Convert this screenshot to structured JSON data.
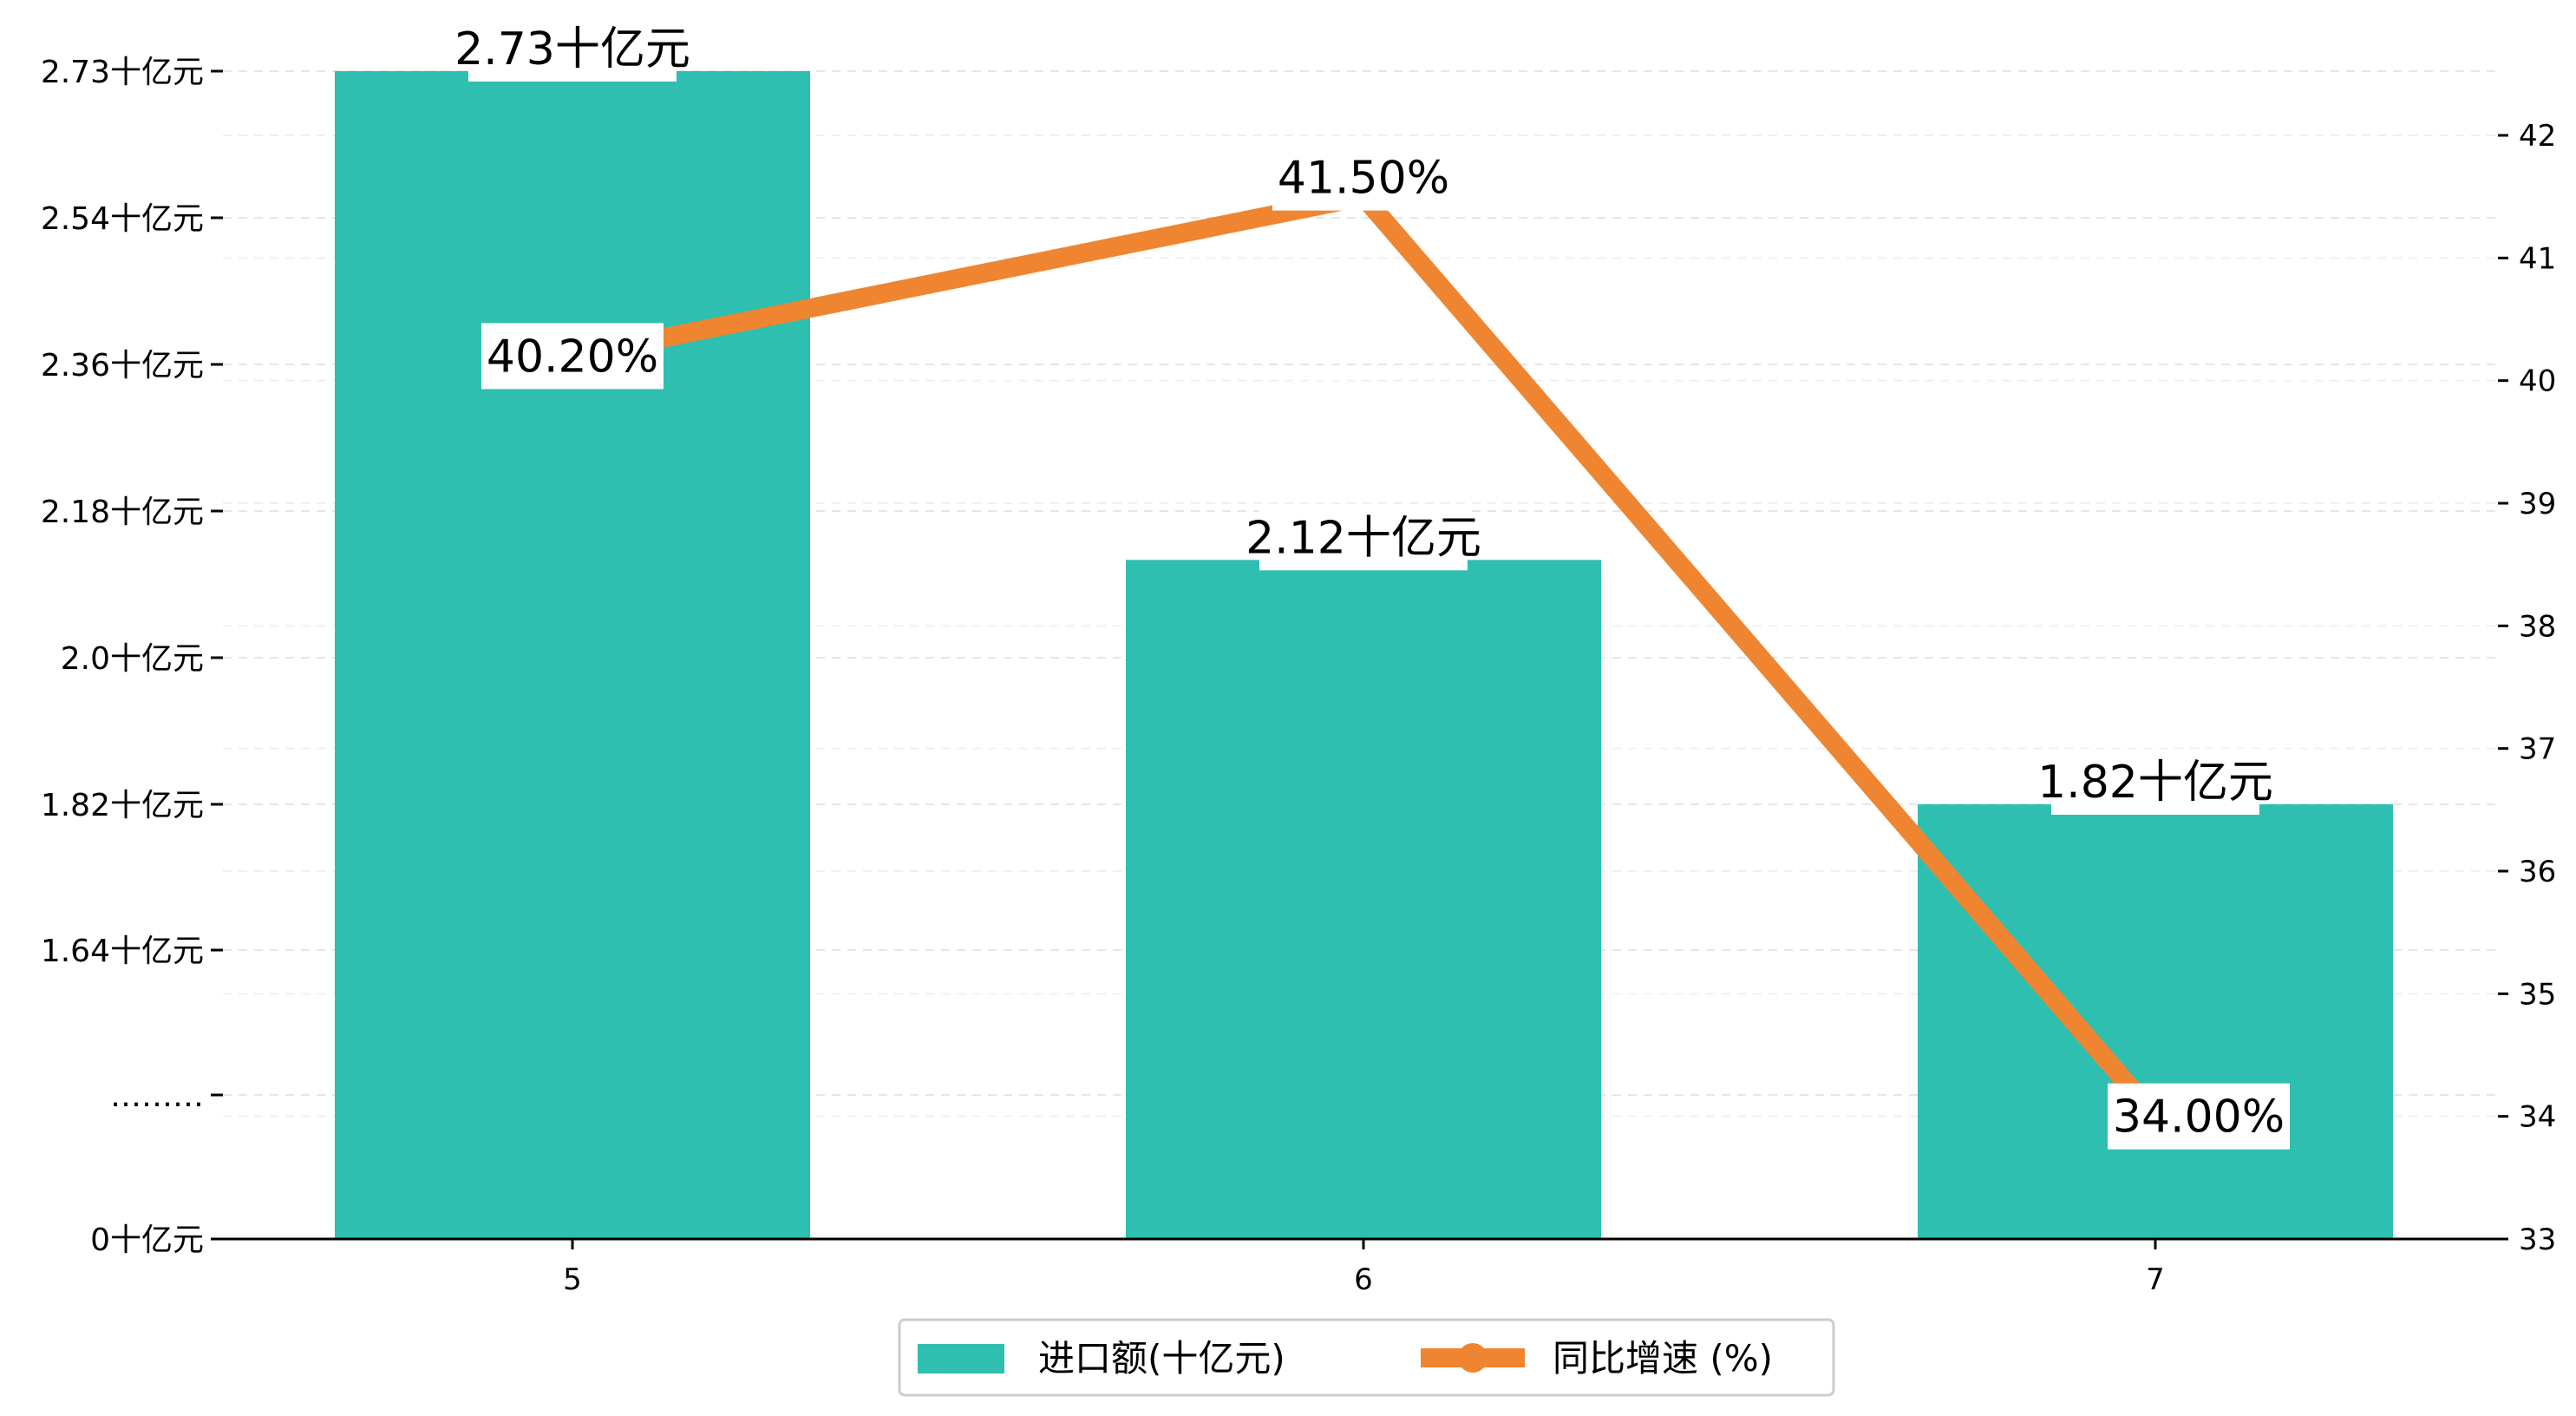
{
  "chart_data": {
    "type": "bar",
    "title": "",
    "xlabel": "",
    "ylabel": "",
    "categories": [
      "5",
      "6",
      "7"
    ],
    "series": [
      {
        "name": "进口额(十亿元)",
        "type": "bar",
        "axis": "left",
        "values": [
          2.73,
          2.12,
          1.82
        ],
        "data_labels": [
          "2.73十亿元",
          "2.12十亿元",
          "1.82十亿元"
        ]
      },
      {
        "name": "同比增速 (%)",
        "type": "line",
        "axis": "right",
        "values": [
          40.2,
          41.5,
          34.0
        ],
        "data_labels": [
          "40.20%",
          "41.50%",
          "34.00%"
        ]
      }
    ],
    "y_left": {
      "ticks": [
        {
          "value": 0,
          "label": "0十亿元"
        },
        {
          "value": 1.46,
          "label": "………"
        },
        {
          "value": 1.64,
          "label": "1.64十亿元"
        },
        {
          "value": 1.82,
          "label": "1.82十亿元"
        },
        {
          "value": 2.0,
          "label": "2.0十亿元"
        },
        {
          "value": 2.18,
          "label": "2.18十亿元"
        },
        {
          "value": 2.36,
          "label": "2.36十亿元"
        },
        {
          "value": 2.54,
          "label": "2.54十亿元"
        },
        {
          "value": 2.73,
          "label": "2.73十亿元"
        }
      ],
      "axis_break": true
    },
    "y_right": {
      "ylim": [
        33,
        42.5
      ],
      "ticks": [
        33,
        34,
        35,
        36,
        37,
        38,
        39,
        40,
        41,
        42
      ]
    },
    "grid": true,
    "legend_position": "bottom-center",
    "colors": {
      "bar": "#2ebfb0",
      "line": "#ef8530",
      "grid": "#e6e6e6",
      "axis": "#000000"
    }
  }
}
